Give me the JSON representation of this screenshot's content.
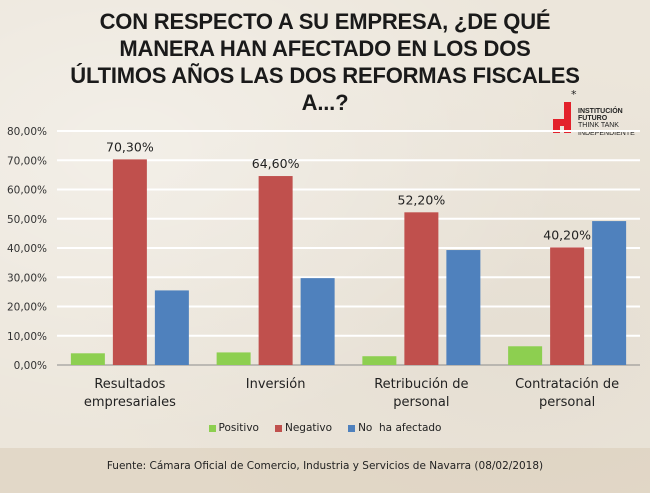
{
  "title": "CON RESPECTO A SU EMPRESA, ¿DE QUÉ\nMANERA HAN AFECTADO EN LOS DOS\nÚLTIMOS AÑOS LAS DOS REFORMAS FISCALES\nA...?",
  "logo": {
    "star": "*",
    "lines": [
      "INSTITUCIÓN",
      "FUTURO",
      "THINK TANK",
      "INDEPENDIENTE"
    ],
    "color": "#e3212b"
  },
  "footer": "Fuente: Cámara Oficial de Comercio, Industria y Servicios de Navarra (08/02/2018)",
  "chart_data": {
    "type": "bar",
    "title": "CON RESPECTO A SU EMPRESA, ¿DE QUÉ MANERA HAN AFECTADO EN LOS DOS ÚLTIMOS AÑOS LAS DOS REFORMAS FISCALES A...?",
    "xlabel": "",
    "ylabel": "",
    "ylim": [
      0,
      80
    ],
    "yticks": [
      "0,00%",
      "10,00%",
      "20,00%",
      "30,00%",
      "40,00%",
      "50,00%",
      "60,00%",
      "70,00%",
      "80,00%"
    ],
    "grid": true,
    "legend_position": "bottom",
    "categories": [
      [
        "Resultados",
        "empresariales"
      ],
      [
        "Inversión"
      ],
      [
        "Retribución de",
        "personal"
      ],
      [
        "Contratación de",
        "personal"
      ]
    ],
    "series": [
      {
        "name": "Positivo",
        "color": "#8dcf50",
        "values": [
          4.0,
          4.3,
          3.0,
          6.4
        ]
      },
      {
        "name": "Negativo",
        "color": "#c0504d",
        "values": [
          70.3,
          64.6,
          52.2,
          40.2
        ],
        "labels": [
          "70,30%",
          "64,60%",
          "52,20%",
          "40,20%"
        ]
      },
      {
        "name": "No  ha afectado",
        "color": "#4f81bd",
        "values": [
          25.5,
          29.7,
          39.3,
          49.2
        ]
      }
    ]
  }
}
